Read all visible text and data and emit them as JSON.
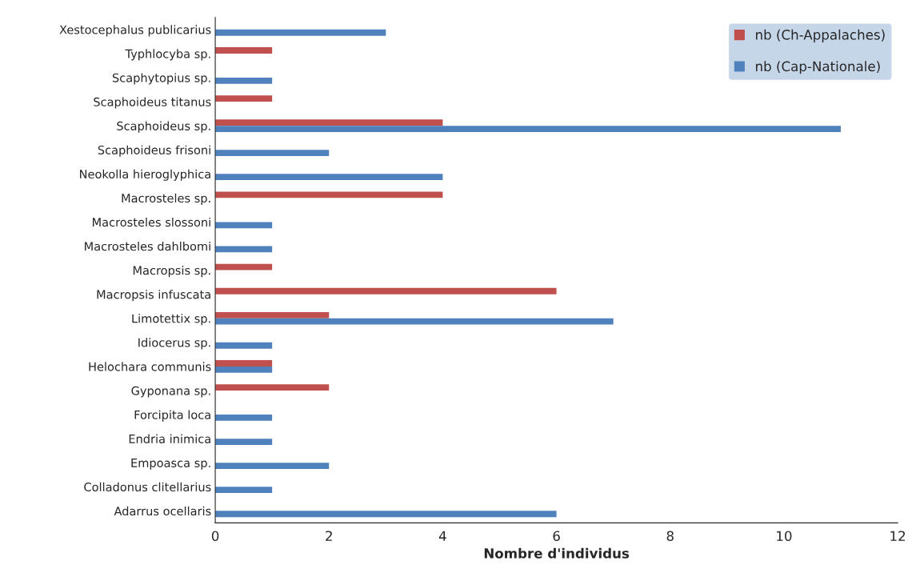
{
  "chart_data": {
    "type": "bar",
    "orientation": "horizontal",
    "xlabel": "Nombre d'individus",
    "categories": [
      "Xestocephalus publicarius",
      "Typhlocyba sp.",
      "Scaphytopius sp.",
      "Scaphoideus titanus",
      "Scaphoideus sp.",
      "Scaphoideus frisoni",
      "Neokolla hieroglyphica",
      "Macrosteles sp.",
      "Macrosteles slossoni",
      "Macrosteles dahlbomi",
      "Macropsis sp.",
      "Macropsis infuscata",
      "Limotettix sp.",
      "Idiocerus sp.",
      "Helochara communis",
      "Gyponana sp.",
      "Forcipita loca",
      "Endria inimica",
      "Empoasca sp.",
      "Colladonus clitellarius",
      "Adarrus ocellaris"
    ],
    "series": [
      {
        "name": "nb (Ch-Appalaches)",
        "color": "#c0504d",
        "values": [
          null,
          1,
          null,
          1,
          4,
          null,
          null,
          4,
          null,
          null,
          1,
          6,
          2,
          null,
          1,
          2,
          null,
          null,
          null,
          null,
          null
        ]
      },
      {
        "name": "nb (Cap-Nationale)",
        "color": "#4f81bd",
        "values": [
          3,
          null,
          1,
          null,
          11,
          2,
          4,
          null,
          1,
          1,
          null,
          null,
          7,
          1,
          1,
          null,
          1,
          1,
          2,
          1,
          6
        ]
      }
    ],
    "xlim": [
      0,
      12
    ],
    "xticks": [
      0,
      2,
      4,
      6,
      8,
      10,
      12
    ],
    "grid": false,
    "legend": "top right"
  }
}
